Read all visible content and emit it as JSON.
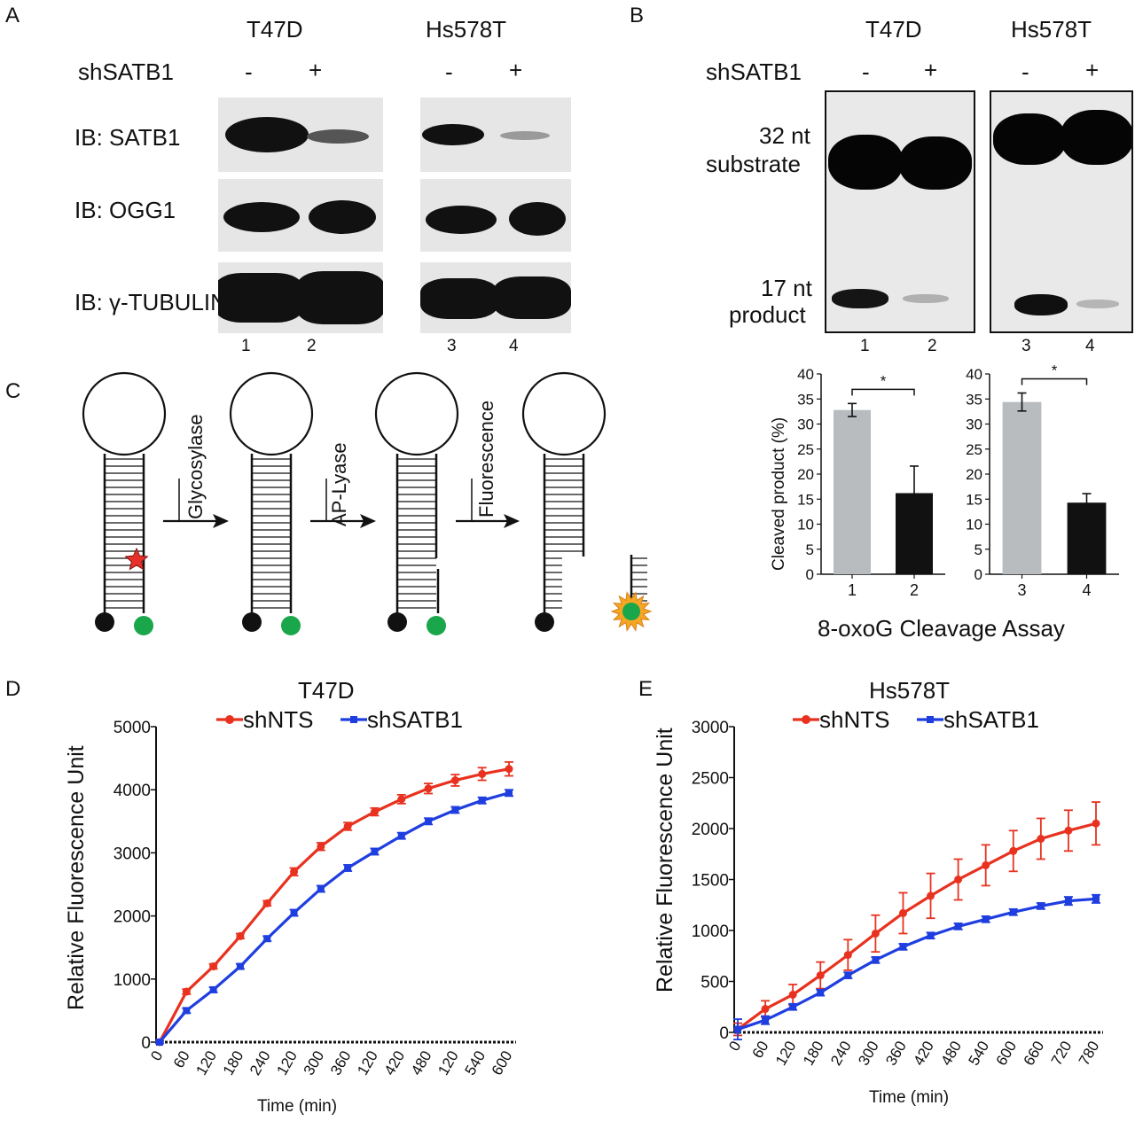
{
  "panelA": {
    "letter": "A",
    "cell_lines": [
      "T47D",
      "Hs578T"
    ],
    "shsatb1_label": "shSATB1",
    "signs": [
      "-",
      "+",
      "-",
      "+"
    ],
    "blots": [
      "IB: SATB1",
      "IB: OGG1",
      "IB: γ-TUBULIN"
    ],
    "lanes": [
      "1",
      "2",
      "3",
      "4"
    ]
  },
  "panelB": {
    "letter": "B",
    "cell_lines": [
      "T47D",
      "Hs578T"
    ],
    "shsatb1_label": "shSATB1",
    "signs": [
      "-",
      "+",
      "-",
      "+"
    ],
    "substrate_label_1": "32 nt",
    "substrate_label_2": "substrate",
    "product_label_1": "17 nt",
    "product_label_2": "product",
    "lanes": [
      "1",
      "2",
      "3",
      "4"
    ],
    "assay_title": "8-oxoG Cleavage Assay"
  },
  "panelC": {
    "letter": "C",
    "steps": [
      "Glycosylase",
      "AP-Lyase",
      "Fluorescence"
    ],
    "colors": {
      "star": "#e8302a",
      "fluorophore": "#1aa64a",
      "burst": "#f5a623",
      "quencher": "#111111"
    }
  },
  "chart_data": [
    {
      "type": "bar",
      "ylabel": "Cleaved product (%)",
      "categories": [
        "1",
        "2"
      ],
      "values": [
        32.8,
        16.2
      ],
      "errors": [
        1.3,
        5.4
      ],
      "colors": [
        "#b8bcbf",
        "#111111"
      ],
      "ylim": [
        0,
        40
      ],
      "yticks": [
        0,
        5,
        10,
        15,
        20,
        25,
        30,
        35,
        40
      ],
      "significance": "*"
    },
    {
      "type": "bar",
      "categories": [
        "3",
        "4"
      ],
      "values": [
        34.4,
        14.3
      ],
      "errors": [
        1.8,
        1.8
      ],
      "colors": [
        "#b8bcbf",
        "#111111"
      ],
      "ylim": [
        0,
        40
      ],
      "yticks": [
        0,
        5,
        10,
        15,
        20,
        25,
        30,
        35,
        40
      ],
      "significance": "*"
    },
    {
      "type": "line",
      "letter": "D",
      "title": "T47D",
      "xlabel": "Time (min)",
      "ylabel": "Relative Fluorescence Unit",
      "x_tick_labels": [
        "0",
        "60",
        "120",
        "180",
        "240",
        "120",
        "300",
        "360",
        "120",
        "420",
        "480",
        "120",
        "540",
        "600"
      ],
      "ylim": [
        0,
        5000
      ],
      "yticks": [
        0,
        1000,
        2000,
        3000,
        4000,
        5000
      ],
      "series": [
        {
          "name": "shNTS",
          "color": "#e8321f",
          "values": [
            0,
            800,
            1200,
            1680,
            2200,
            2700,
            3100,
            3420,
            3650,
            3850,
            4020,
            4150,
            4250,
            4330
          ],
          "errors": [
            20,
            40,
            40,
            40,
            40,
            60,
            60,
            60,
            60,
            70,
            80,
            90,
            100,
            110
          ]
        },
        {
          "name": "shSATB1",
          "color": "#1f3ee0",
          "values": [
            0,
            500,
            830,
            1200,
            1640,
            2050,
            2430,
            2760,
            3020,
            3270,
            3500,
            3680,
            3830,
            3950
          ],
          "errors": [
            20,
            40,
            40,
            40,
            40,
            50,
            50,
            50,
            50,
            50,
            50,
            50,
            50,
            50
          ]
        }
      ]
    },
    {
      "type": "line",
      "letter": "E",
      "title": "Hs578T",
      "xlabel": "Time (min)",
      "ylabel": "Relative Fluorescence Unit",
      "x_tick_labels": [
        "0",
        "60",
        "120",
        "180",
        "240",
        "300",
        "360",
        "420",
        "480",
        "540",
        "600",
        "660",
        "720",
        "780"
      ],
      "ylim": [
        0,
        3000
      ],
      "yticks": [
        0,
        500,
        1000,
        1500,
        2000,
        2500,
        3000
      ],
      "series": [
        {
          "name": "shNTS",
          "color": "#e8321f",
          "values": [
            30,
            230,
            370,
            560,
            760,
            970,
            1170,
            1340,
            1500,
            1640,
            1780,
            1900,
            1980,
            2050
          ],
          "errors": [
            60,
            80,
            100,
            130,
            150,
            180,
            200,
            220,
            200,
            200,
            200,
            200,
            200,
            210
          ]
        },
        {
          "name": "shSATB1",
          "color": "#1f3ee0",
          "values": [
            30,
            120,
            250,
            390,
            560,
            710,
            840,
            950,
            1040,
            1110,
            1180,
            1240,
            1290,
            1310
          ],
          "errors": [
            100,
            40,
            30,
            30,
            30,
            30,
            30,
            30,
            30,
            30,
            30,
            30,
            40,
            40
          ]
        }
      ]
    }
  ]
}
